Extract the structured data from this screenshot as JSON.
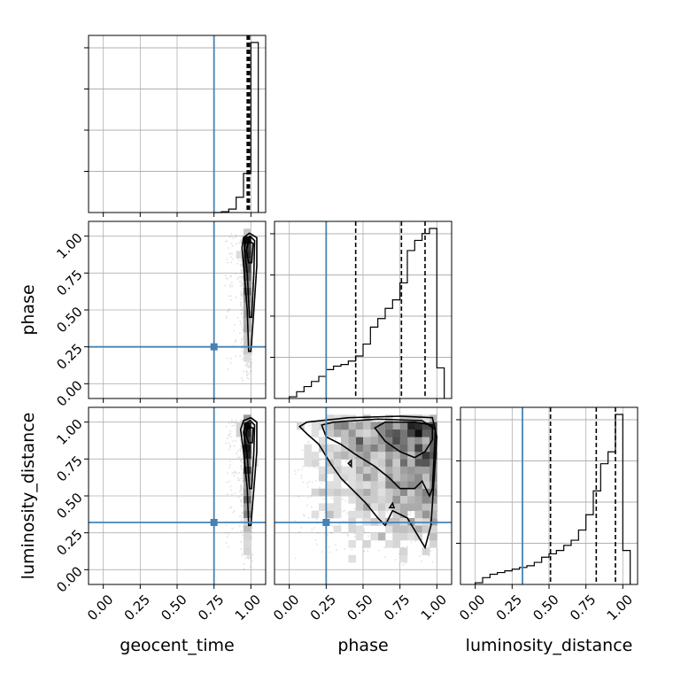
{
  "chart_data": {
    "type": "corner",
    "parameters": [
      "geocent_time",
      "phase",
      "luminosity_distance"
    ],
    "tick_labels": [
      "0.00",
      "0.25",
      "0.50",
      "0.75",
      "1.00"
    ],
    "ticks": [
      0,
      0.25,
      0.5,
      0.75,
      1.0
    ],
    "xlim": [
      -0.1,
      1.1
    ],
    "grid": true,
    "truth_color": "#4682b4",
    "truths": {
      "geocent_time": 0.75,
      "phase": 0.25,
      "luminosity_distance": 0.32
    },
    "quantiles": {
      "geocent_time": [
        0.975,
        0.985,
        0.99
      ],
      "phase": [
        0.45,
        0.76,
        0.92
      ],
      "luminosity_distance": [
        0.51,
        0.82,
        0.95
      ]
    },
    "histograms": {
      "geocent_time": {
        "edges": [
          0.75,
          0.8,
          0.85,
          0.9,
          0.95,
          1.0,
          1.05
        ],
        "counts": [
          0,
          0.005,
          0.02,
          0.09,
          0.23,
          1.0
        ]
      },
      "phase": {
        "edges": [
          0.0,
          0.05,
          0.1,
          0.15,
          0.2,
          0.25,
          0.3,
          0.35,
          0.4,
          0.45,
          0.5,
          0.55,
          0.6,
          0.65,
          0.7,
          0.75,
          0.8,
          0.85,
          0.9,
          0.95,
          1.0,
          1.05
        ],
        "counts": [
          0.01,
          0.04,
          0.07,
          0.1,
          0.13,
          0.17,
          0.19,
          0.2,
          0.22,
          0.25,
          0.32,
          0.42,
          0.47,
          0.53,
          0.58,
          0.68,
          0.87,
          0.93,
          0.97,
          1.0,
          0.18
        ]
      },
      "luminosity_distance": {
        "edges": [
          0.0,
          0.05,
          0.1,
          0.15,
          0.2,
          0.25,
          0.3,
          0.35,
          0.4,
          0.45,
          0.5,
          0.55,
          0.6,
          0.65,
          0.7,
          0.75,
          0.8,
          0.85,
          0.9,
          0.95,
          1.0,
          1.05
        ],
        "counts": [
          0.01,
          0.04,
          0.06,
          0.07,
          0.08,
          0.09,
          0.1,
          0.11,
          0.13,
          0.16,
          0.18,
          0.2,
          0.23,
          0.26,
          0.32,
          0.41,
          0.55,
          0.71,
          0.78,
          1.0,
          0.2
        ]
      }
    }
  }
}
